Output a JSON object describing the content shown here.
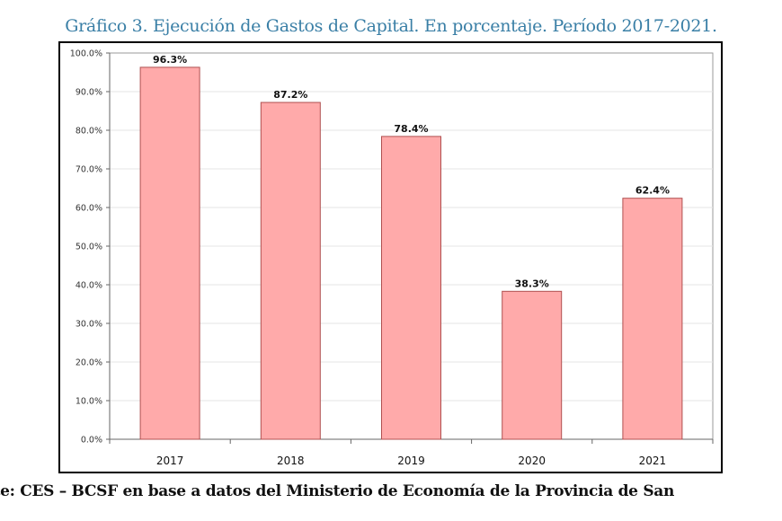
{
  "chart_data": {
    "type": "bar",
    "title": "Gráfico 3. Ejecución de Gastos de Capital. En porcentaje. Período 2017-2021.",
    "categories": [
      "2017",
      "2018",
      "2019",
      "2020",
      "2021"
    ],
    "values": [
      96.3,
      87.2,
      78.4,
      38.3,
      62.4
    ],
    "data_labels": [
      "96.3%",
      "87.2%",
      "78.4%",
      "38.3%",
      "62.4%"
    ],
    "yticks": [
      "0.0%",
      "10.0%",
      "20.0%",
      "30.0%",
      "40.0%",
      "50.0%",
      "60.0%",
      "70.0%",
      "80.0%",
      "90.0%",
      "100.0%"
    ],
    "ylim": [
      0,
      100
    ],
    "xlabel": "",
    "ylabel": "",
    "grid": true,
    "legend": "none",
    "bar_color": "#ffaaaa",
    "bar_edge": "#b05050"
  },
  "source": "ente: CES – BCSF en base a datos del Ministerio de Economía de la Provincia de San"
}
